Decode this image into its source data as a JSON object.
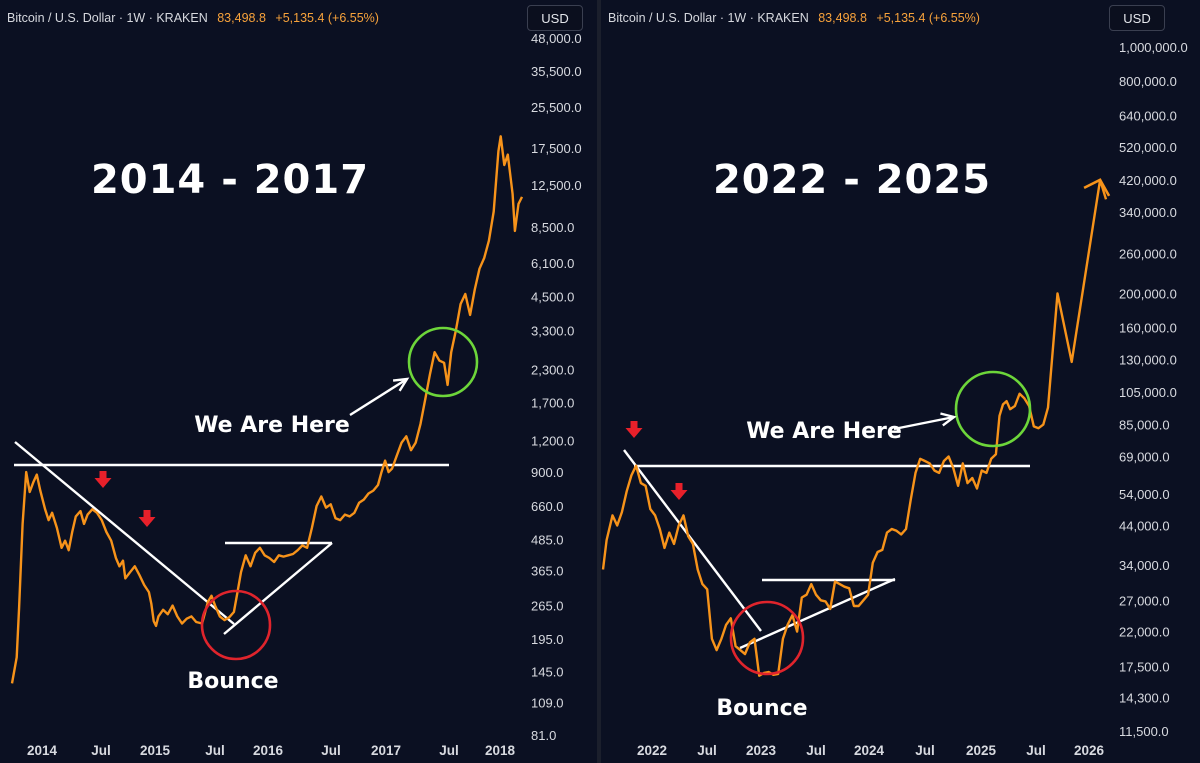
{
  "chart_data": [
    {
      "type": "line",
      "header": {
        "symbol": "Bitcoin / U.S. Dollar · 1W · KRAKEN",
        "price": "83,498.8",
        "change": "+5,135.4 (+6.55%)",
        "currency": "USD"
      },
      "title": "2014 - 2017",
      "y_scale": "log",
      "y_ticks": [
        "48,000.0",
        "35,500.0",
        "25,500.0",
        "17,500.0",
        "12,500.0",
        "8,500.0",
        "6,100.0",
        "4,500.0",
        "3,300.0",
        "2,300.0",
        "1,700.0",
        "1,200.0",
        "900.0",
        "660.0",
        "485.0",
        "365.0",
        "265.0",
        "195.0",
        "145.0",
        "109.0",
        "81.0"
      ],
      "x_ticks": [
        "2014",
        "Jul",
        "2015",
        "Jul",
        "2016",
        "Jul",
        "2017",
        "Jul",
        "2018"
      ],
      "annotations": {
        "here": "We Are Here",
        "bounce": "Bounce"
      },
      "colors": {
        "line": "#f7931a",
        "circle_bounce": "#e0242c",
        "circle_here": "#6dd63a",
        "arrow_marker": "#e8202a",
        "guide": "#ffffff"
      },
      "series": [
        {
          "values": [
            [
              2013.84,
              130
            ],
            [
              2013.88,
              165
            ],
            [
              2013.9,
              260
            ],
            [
              2013.93,
              560
            ],
            [
              2013.96,
              900
            ],
            [
              2013.99,
              750
            ],
            [
              2014.02,
              820
            ],
            [
              2014.05,
              880
            ],
            [
              2014.08,
              760
            ],
            [
              2014.12,
              640
            ],
            [
              2014.15,
              580
            ],
            [
              2014.18,
              620
            ],
            [
              2014.22,
              540
            ],
            [
              2014.26,
              450
            ],
            [
              2014.29,
              480
            ],
            [
              2014.32,
              440
            ],
            [
              2014.35,
              520
            ],
            [
              2014.38,
              600
            ],
            [
              2014.42,
              630
            ],
            [
              2014.45,
              560
            ],
            [
              2014.48,
              610
            ],
            [
              2014.52,
              640
            ],
            [
              2014.56,
              620
            ],
            [
              2014.6,
              580
            ],
            [
              2014.64,
              520
            ],
            [
              2014.68,
              480
            ],
            [
              2014.72,
              410
            ],
            [
              2014.75,
              380
            ],
            [
              2014.78,
              400
            ],
            [
              2014.8,
              340
            ],
            [
              2014.84,
              360
            ],
            [
              2014.88,
              380
            ],
            [
              2014.92,
              350
            ],
            [
              2014.96,
              320
            ],
            [
              2015.0,
              300
            ],
            [
              2015.02,
              270
            ],
            [
              2015.04,
              230
            ],
            [
              2015.06,
              220
            ],
            [
              2015.08,
              240
            ],
            [
              2015.12,
              255
            ],
            [
              2015.16,
              245
            ],
            [
              2015.2,
              265
            ],
            [
              2015.24,
              240
            ],
            [
              2015.28,
              225
            ],
            [
              2015.32,
              235
            ],
            [
              2015.36,
              240
            ],
            [
              2015.4,
              228
            ],
            [
              2015.45,
              225
            ],
            [
              2015.5,
              275
            ],
            [
              2015.53,
              290
            ],
            [
              2015.56,
              265
            ],
            [
              2015.6,
              240
            ],
            [
              2015.64,
              232
            ],
            [
              2015.68,
              238
            ],
            [
              2015.72,
              250
            ],
            [
              2015.75,
              300
            ],
            [
              2015.78,
              360
            ],
            [
              2015.82,
              420
            ],
            [
              2015.86,
              380
            ],
            [
              2015.9,
              430
            ],
            [
              2015.94,
              450
            ],
            [
              2015.98,
              420
            ],
            [
              2016.02,
              410
            ],
            [
              2016.06,
              395
            ],
            [
              2016.1,
              420
            ],
            [
              2016.14,
              415
            ],
            [
              2016.18,
              420
            ],
            [
              2016.22,
              425
            ],
            [
              2016.26,
              440
            ],
            [
              2016.3,
              460
            ],
            [
              2016.34,
              450
            ],
            [
              2016.38,
              540
            ],
            [
              2016.42,
              660
            ],
            [
              2016.46,
              720
            ],
            [
              2016.5,
              650
            ],
            [
              2016.54,
              670
            ],
            [
              2016.58,
              590
            ],
            [
              2016.62,
              580
            ],
            [
              2016.66,
              610
            ],
            [
              2016.7,
              600
            ],
            [
              2016.74,
              620
            ],
            [
              2016.78,
              680
            ],
            [
              2016.82,
              700
            ],
            [
              2016.86,
              740
            ],
            [
              2016.9,
              760
            ],
            [
              2016.94,
              800
            ],
            [
              2016.97,
              900
            ],
            [
              2017.0,
              1000
            ],
            [
              2017.03,
              900
            ],
            [
              2017.06,
              930
            ],
            [
              2017.1,
              1050
            ],
            [
              2017.14,
              1180
            ],
            [
              2017.18,
              1250
            ],
            [
              2017.22,
              1100
            ],
            [
              2017.26,
              1180
            ],
            [
              2017.3,
              1400
            ],
            [
              2017.34,
              1750
            ],
            [
              2017.38,
              2200
            ],
            [
              2017.42,
              2700
            ],
            [
              2017.46,
              2500
            ],
            [
              2017.5,
              2450
            ],
            [
              2017.53,
              2000
            ],
            [
              2017.56,
              2700
            ],
            [
              2017.6,
              3300
            ],
            [
              2017.64,
              4200
            ],
            [
              2017.68,
              4600
            ],
            [
              2017.72,
              3800
            ],
            [
              2017.76,
              4800
            ],
            [
              2017.8,
              5800
            ],
            [
              2017.84,
              6400
            ],
            [
              2017.88,
              7500
            ],
            [
              2017.92,
              9800
            ],
            [
              2017.96,
              17000
            ],
            [
              2017.98,
              19500
            ],
            [
              2018.01,
              15000
            ],
            [
              2018.04,
              16500
            ],
            [
              2018.08,
              11500
            ],
            [
              2018.1,
              8200
            ],
            [
              2018.13,
              10500
            ],
            [
              2018.16,
              11200
            ]
          ]
        }
      ]
    },
    {
      "type": "line",
      "header": {
        "symbol": "Bitcoin / U.S. Dollar · 1W · KRAKEN",
        "price": "83,498.8",
        "change": "+5,135.4 (+6.55%)",
        "currency": "USD"
      },
      "title": "2022 - 2025",
      "y_scale": "log",
      "y_ticks": [
        "1,000,000.0",
        "800,000.0",
        "640,000.0",
        "520,000.0",
        "420,000.0",
        "340,000.0",
        "260,000.0",
        "200,000.0",
        "160,000.0",
        "130,000.0",
        "105,000.0",
        "85,000.0",
        "69,000.0",
        "54,000.0",
        "44,000.0",
        "34,000.0",
        "27,000.0",
        "22,000.0",
        "17,500.0",
        "14,300.0",
        "11,500.0"
      ],
      "x_ticks": [
        "2022",
        "Jul",
        "2023",
        "Jul",
        "2024",
        "Jul",
        "2025",
        "Jul",
        "2026"
      ],
      "annotations": {
        "here": "We Are Here",
        "bounce": "Bounce"
      },
      "colors": {
        "line": "#f7931a",
        "circle_bounce": "#e0242c",
        "circle_here": "#6dd63a",
        "arrow_marker": "#e8202a",
        "guide": "#ffffff"
      },
      "series": [
        {
          "values": [
            [
              2021.52,
              33000
            ],
            [
              2021.55,
              40000
            ],
            [
              2021.6,
              47000
            ],
            [
              2021.64,
              44000
            ],
            [
              2021.68,
              48000
            ],
            [
              2021.72,
              55000
            ],
            [
              2021.76,
              61000
            ],
            [
              2021.8,
              65000
            ],
            [
              2021.84,
              58000
            ],
            [
              2021.88,
              57000
            ],
            [
              2021.92,
              49000
            ],
            [
              2021.96,
              47000
            ],
            [
              2022.0,
              43000
            ],
            [
              2022.04,
              38000
            ],
            [
              2022.08,
              42000
            ],
            [
              2022.12,
              39000
            ],
            [
              2022.16,
              44000
            ],
            [
              2022.2,
              47000
            ],
            [
              2022.24,
              41000
            ],
            [
              2022.28,
              39000
            ],
            [
              2022.32,
              33000
            ],
            [
              2022.36,
              30000
            ],
            [
              2022.4,
              29000
            ],
            [
              2022.44,
              21000
            ],
            [
              2022.48,
              19500
            ],
            [
              2022.52,
              21000
            ],
            [
              2022.56,
              23000
            ],
            [
              2022.6,
              24000
            ],
            [
              2022.64,
              20000
            ],
            [
              2022.68,
              19500
            ],
            [
              2022.72,
              19000
            ],
            [
              2022.76,
              20500
            ],
            [
              2022.8,
              21000
            ],
            [
              2022.84,
              16500
            ],
            [
              2022.88,
              16800
            ],
            [
              2022.92,
              16900
            ],
            [
              2022.96,
              16600
            ],
            [
              2023.0,
              16700
            ],
            [
              2023.04,
              21000
            ],
            [
              2023.08,
              23000
            ],
            [
              2023.12,
              24500
            ],
            [
              2023.16,
              22000
            ],
            [
              2023.2,
              27500
            ],
            [
              2023.24,
              28000
            ],
            [
              2023.28,
              30000
            ],
            [
              2023.32,
              28000
            ],
            [
              2023.36,
              27000
            ],
            [
              2023.4,
              26800
            ],
            [
              2023.44,
              25500
            ],
            [
              2023.48,
              30500
            ],
            [
              2023.52,
              30000
            ],
            [
              2023.56,
              29500
            ],
            [
              2023.6,
              29200
            ],
            [
              2023.64,
              26000
            ],
            [
              2023.68,
              26000
            ],
            [
              2023.72,
              27000
            ],
            [
              2023.76,
              28000
            ],
            [
              2023.8,
              34500
            ],
            [
              2023.84,
              37000
            ],
            [
              2023.88,
              37500
            ],
            [
              2023.92,
              42000
            ],
            [
              2023.96,
              43000
            ],
            [
              2024.0,
              42500
            ],
            [
              2024.04,
              41500
            ],
            [
              2024.08,
              43000
            ],
            [
              2024.12,
              52000
            ],
            [
              2024.16,
              62000
            ],
            [
              2024.2,
              68000
            ],
            [
              2024.24,
              67000
            ],
            [
              2024.28,
              66000
            ],
            [
              2024.32,
              63000
            ],
            [
              2024.36,
              62000
            ],
            [
              2024.4,
              67000
            ],
            [
              2024.44,
              69000
            ],
            [
              2024.48,
              64000
            ],
            [
              2024.52,
              57000
            ],
            [
              2024.56,
              66000
            ],
            [
              2024.6,
              58000
            ],
            [
              2024.64,
              60000
            ],
            [
              2024.68,
              56000
            ],
            [
              2024.72,
              63000
            ],
            [
              2024.76,
              62000
            ],
            [
              2024.8,
              68000
            ],
            [
              2024.84,
              70000
            ],
            [
              2024.87,
              90000
            ],
            [
              2024.9,
              97000
            ],
            [
              2024.93,
              99000
            ],
            [
              2024.96,
              94000
            ],
            [
              2025.0,
              96000
            ],
            [
              2025.04,
              104000
            ],
            [
              2025.08,
              101000
            ],
            [
              2025.12,
              96000
            ],
            [
              2025.16,
              84000
            ],
            [
              2025.2,
              83000
            ],
            [
              2025.24,
              85000
            ],
            [
              2025.28,
              95000
            ],
            [
              2025.36,
              200000
            ],
            [
              2025.48,
              128000
            ],
            [
              2025.72,
              420000
            ],
            [
              2025.77,
              370000
            ]
          ]
        }
      ]
    }
  ]
}
